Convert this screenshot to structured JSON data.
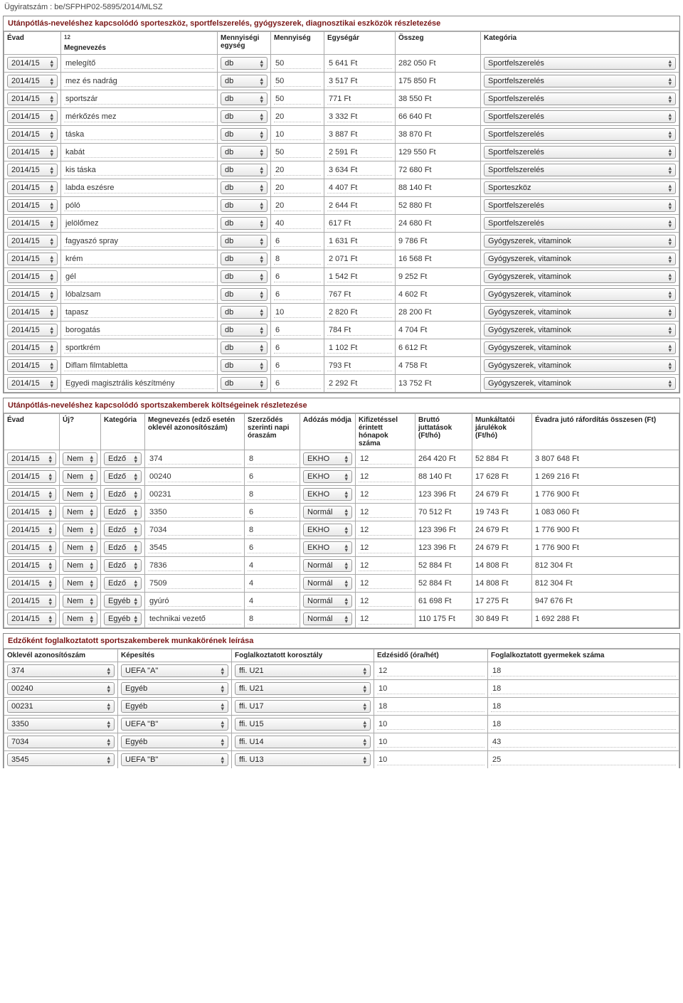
{
  "doc_number": "Ügyiratszám : be/SFPHP02-5895/2014/MLSZ",
  "section1": {
    "title": "Utánpótlás-neveléshez kapcsolódó sporteszköz, sportfelszerelés, gyógyszerek, diagnosztikai eszközök részletezése",
    "sup": "12",
    "headers": [
      "Évad",
      "Megnevezés",
      "Mennyiségi egység",
      "Mennyiség",
      "Egységár",
      "Összeg",
      "Kategória"
    ],
    "rows": [
      {
        "evad": "2014/15",
        "meg": "melegítő",
        "egy": "db",
        "menny": "50",
        "ar": "5 641 Ft",
        "ossz": "282 050  Ft",
        "kat": "Sportfelszerelés"
      },
      {
        "evad": "2014/15",
        "meg": "mez és nadrág",
        "egy": "db",
        "menny": "50",
        "ar": "3 517 Ft",
        "ossz": "175 850  Ft",
        "kat": "Sportfelszerelés"
      },
      {
        "evad": "2014/15",
        "meg": "sportszár",
        "egy": "db",
        "menny": "50",
        "ar": "771 Ft",
        "ossz": "38 550  Ft",
        "kat": "Sportfelszerelés"
      },
      {
        "evad": "2014/15",
        "meg": "mérkőzés mez",
        "egy": "db",
        "menny": "20",
        "ar": "3 332 Ft",
        "ossz": "66 640  Ft",
        "kat": "Sportfelszerelés"
      },
      {
        "evad": "2014/15",
        "meg": "táska",
        "egy": "db",
        "menny": "10",
        "ar": "3 887 Ft",
        "ossz": "38 870  Ft",
        "kat": "Sportfelszerelés"
      },
      {
        "evad": "2014/15",
        "meg": "kabát",
        "egy": "db",
        "menny": "50",
        "ar": "2 591 Ft",
        "ossz": "129 550  Ft",
        "kat": "Sportfelszerelés"
      },
      {
        "evad": "2014/15",
        "meg": "kis táska",
        "egy": "db",
        "menny": "20",
        "ar": "3 634 Ft",
        "ossz": "72 680  Ft",
        "kat": "Sportfelszerelés"
      },
      {
        "evad": "2014/15",
        "meg": "labda eszésre",
        "egy": "db",
        "menny": "20",
        "ar": "4 407 Ft",
        "ossz": "88 140  Ft",
        "kat": "Sporteszköz"
      },
      {
        "evad": "2014/15",
        "meg": "póló",
        "egy": "db",
        "menny": "20",
        "ar": "2 644 Ft",
        "ossz": "52 880  Ft",
        "kat": "Sportfelszerelés"
      },
      {
        "evad": "2014/15",
        "meg": "jelölőmez",
        "egy": "db",
        "menny": "40",
        "ar": "617 Ft",
        "ossz": "24 680  Ft",
        "kat": "Sportfelszerelés"
      },
      {
        "evad": "2014/15",
        "meg": "fagyaszó spray",
        "egy": "db",
        "menny": "6",
        "ar": "1 631 Ft",
        "ossz": "9 786  Ft",
        "kat": "Gyógyszerek, vitaminok"
      },
      {
        "evad": "2014/15",
        "meg": "krém",
        "egy": "db",
        "menny": "8",
        "ar": "2 071 Ft",
        "ossz": "16 568  Ft",
        "kat": "Gyógyszerek, vitaminok"
      },
      {
        "evad": "2014/15",
        "meg": "gél",
        "egy": "db",
        "menny": "6",
        "ar": "1 542 Ft",
        "ossz": "9 252  Ft",
        "kat": "Gyógyszerek, vitaminok"
      },
      {
        "evad": "2014/15",
        "meg": "lóbalzsam",
        "egy": "db",
        "menny": "6",
        "ar": "767 Ft",
        "ossz": "4 602  Ft",
        "kat": "Gyógyszerek, vitaminok"
      },
      {
        "evad": "2014/15",
        "meg": "tapasz",
        "egy": "db",
        "menny": "10",
        "ar": "2 820 Ft",
        "ossz": "28 200  Ft",
        "kat": "Gyógyszerek, vitaminok"
      },
      {
        "evad": "2014/15",
        "meg": "borogatás",
        "egy": "db",
        "menny": "6",
        "ar": "784 Ft",
        "ossz": "4 704  Ft",
        "kat": "Gyógyszerek, vitaminok"
      },
      {
        "evad": "2014/15",
        "meg": "sportkrém",
        "egy": "db",
        "menny": "6",
        "ar": "1 102 Ft",
        "ossz": "6 612  Ft",
        "kat": "Gyógyszerek, vitaminok"
      },
      {
        "evad": "2014/15",
        "meg": "Diflam filmtabletta",
        "egy": "db",
        "menny": "6",
        "ar": "793 Ft",
        "ossz": "4 758  Ft",
        "kat": "Gyógyszerek, vitaminok"
      },
      {
        "evad": "2014/15",
        "meg": "Egyedi magisztrális készítmény",
        "egy": "db",
        "menny": "6",
        "ar": "2 292 Ft",
        "ossz": "13 752  Ft",
        "kat": "Gyógyszerek, vitaminok"
      }
    ]
  },
  "section2": {
    "title": "Utánpótlás-neveléshez kapcsolódó sportszakemberek költségeinek részletezése",
    "headers": [
      "Évad",
      "Új?",
      "Kategória",
      "Megnevezés (edző esetén oklevél azonosítószám)",
      "Szerződés szerinti napi óraszám",
      "Adózás módja",
      "Kifizetéssel érintett hónapok száma",
      "Bruttó juttatások (Ft/hó)",
      "Munkáltatói járulékok (Ft/hó)",
      "Évadra jutó ráfordítás összesen (Ft)"
    ],
    "rows": [
      {
        "evad": "2014/15",
        "uj": "Nem",
        "kat": "Edző",
        "meg": "374",
        "ora": "8",
        "adoz": "EKHO",
        "hon": "12",
        "br": "264 420 Ft",
        "jar": "52 884  Ft",
        "ossz": "3 807 648  Ft"
      },
      {
        "evad": "2014/15",
        "uj": "Nem",
        "kat": "Edző",
        "meg": "00240",
        "ora": "6",
        "adoz": "EKHO",
        "hon": "12",
        "br": "88 140 Ft",
        "jar": "17 628  Ft",
        "ossz": "1 269 216  Ft"
      },
      {
        "evad": "2014/15",
        "uj": "Nem",
        "kat": "Edző",
        "meg": "00231",
        "ora": "8",
        "adoz": "EKHO",
        "hon": "12",
        "br": "123 396 Ft",
        "jar": "24 679  Ft",
        "ossz": "1 776 900  Ft"
      },
      {
        "evad": "2014/15",
        "uj": "Nem",
        "kat": "Edző",
        "meg": "3350",
        "ora": "6",
        "adoz": "Normál",
        "hon": "12",
        "br": "70 512 Ft",
        "jar": "19 743  Ft",
        "ossz": "1 083 060  Ft"
      },
      {
        "evad": "2014/15",
        "uj": "Nem",
        "kat": "Edző",
        "meg": "7034",
        "ora": "8",
        "adoz": "EKHO",
        "hon": "12",
        "br": "123 396 Ft",
        "jar": "24 679  Ft",
        "ossz": "1 776 900  Ft"
      },
      {
        "evad": "2014/15",
        "uj": "Nem",
        "kat": "Edző",
        "meg": "3545",
        "ora": "6",
        "adoz": "EKHO",
        "hon": "12",
        "br": "123 396 Ft",
        "jar": "24 679  Ft",
        "ossz": "1 776 900  Ft"
      },
      {
        "evad": "2014/15",
        "uj": "Nem",
        "kat": "Edző",
        "meg": "7836",
        "ora": "4",
        "adoz": "Normál",
        "hon": "12",
        "br": "52 884 Ft",
        "jar": "14 808  Ft",
        "ossz": "812 304  Ft"
      },
      {
        "evad": "2014/15",
        "uj": "Nem",
        "kat": "Edző",
        "meg": "7509",
        "ora": "4",
        "adoz": "Normál",
        "hon": "12",
        "br": "52 884 Ft",
        "jar": "14 808  Ft",
        "ossz": "812 304  Ft"
      },
      {
        "evad": "2014/15",
        "uj": "Nem",
        "kat": "Egyéb",
        "meg": "gyúró",
        "ora": "4",
        "adoz": "Normál",
        "hon": "12",
        "br": "61 698 Ft",
        "jar": "17 275  Ft",
        "ossz": "947 676  Ft"
      },
      {
        "evad": "2014/15",
        "uj": "Nem",
        "kat": "Egyéb",
        "meg": "technikai vezető",
        "ora": "8",
        "adoz": "Normál",
        "hon": "12",
        "br": "110 175 Ft",
        "jar": "30 849  Ft",
        "ossz": "1 692 288  Ft"
      }
    ]
  },
  "section3": {
    "title": "Edzőként foglalkoztatott sportszakemberek munkakörének leírása",
    "headers": [
      "Oklevél azonosítószám",
      "Képesítés",
      "Foglalkoztatott korosztály",
      "Edzésidő (óra/hét)",
      "Foglalkoztatott gyermekek száma"
    ],
    "rows": [
      {
        "okl": "374",
        "kep": "UEFA \"A\"",
        "kor": "ffi. U21",
        "ido": "12",
        "gy": "18"
      },
      {
        "okl": "00240",
        "kep": "Egyéb",
        "kor": "ffi. U21",
        "ido": "10",
        "gy": "18"
      },
      {
        "okl": "00231",
        "kep": "Egyéb",
        "kor": "ffi. U17",
        "ido": "18",
        "gy": "18"
      },
      {
        "okl": "3350",
        "kep": "UEFA \"B\"",
        "kor": "ffi. U15",
        "ido": "10",
        "gy": "18"
      },
      {
        "okl": "7034",
        "kep": "Egyéb",
        "kor": "ffi. U14",
        "ido": "10",
        "gy": "43"
      },
      {
        "okl": "3545",
        "kep": "UEFA \"B\"",
        "kor": "ffi. U13",
        "ido": "10",
        "gy": "25"
      }
    ]
  }
}
